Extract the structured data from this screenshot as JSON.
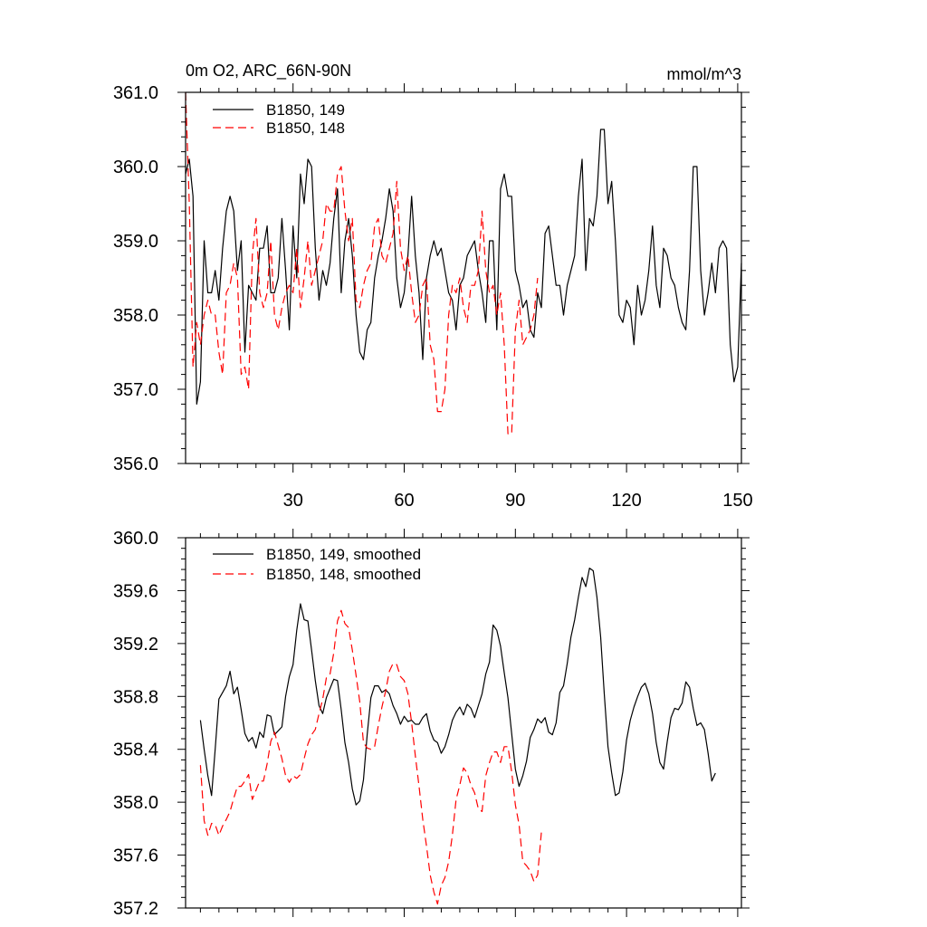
{
  "colors": {
    "series_149": "#000000",
    "series_148": "#ff0000"
  },
  "header": {
    "title": "0m O2, ARC_66N-90N",
    "units": "mmol/m^3"
  },
  "chart_data": [
    {
      "type": "line",
      "xlim": [
        1,
        151
      ],
      "ylim": [
        356.0,
        361.0
      ],
      "x_ticks": [
        30,
        60,
        90,
        120,
        150
      ],
      "x_tick_labels": [
        "30",
        "60",
        "90",
        "120",
        "150"
      ],
      "y_ticks": [
        356.0,
        357.0,
        358.0,
        359.0,
        360.0,
        361.0
      ],
      "y_tick_labels": [
        "356.0",
        "357.0",
        "358.0",
        "359.0",
        "360.0",
        "361.0"
      ],
      "legend": "top-left",
      "series": [
        {
          "name": "B1850, 149",
          "color": "#000000",
          "dash": "solid",
          "x_start": 1,
          "values": [
            359.9,
            360.1,
            359.6,
            356.8,
            357.1,
            359.0,
            358.3,
            358.3,
            358.6,
            358.2,
            358.9,
            359.4,
            359.6,
            359.4,
            358.6,
            359.0,
            357.5,
            358.4,
            358.3,
            358.2,
            358.9,
            358.9,
            359.2,
            358.3,
            358.3,
            358.5,
            359.3,
            358.6,
            357.8,
            359.2,
            358.5,
            359.9,
            359.5,
            360.1,
            360.0,
            358.9,
            358.2,
            358.6,
            358.4,
            358.7,
            359.3,
            359.7,
            358.3,
            359.0,
            359.3,
            358.8,
            358.0,
            357.5,
            357.4,
            357.8,
            357.9,
            358.5,
            358.8,
            359.0,
            359.3,
            359.7,
            359.4,
            358.5,
            358.1,
            358.3,
            358.8,
            359.6,
            358.8,
            358.3,
            357.4,
            358.5,
            358.8,
            359.0,
            358.8,
            358.9,
            358.6,
            358.3,
            358.2,
            357.8,
            358.4,
            358.5,
            358.8,
            358.9,
            359.0,
            358.6,
            358.3,
            357.9,
            359.0,
            359.0,
            357.8,
            359.7,
            359.9,
            359.6,
            359.6,
            358.6,
            358.4,
            358.1,
            358.2,
            357.8,
            357.7,
            358.3,
            358.1,
            359.1,
            359.2,
            358.8,
            358.4,
            358.4,
            358.0,
            358.4,
            358.6,
            358.8,
            359.6,
            360.1,
            358.6,
            359.3,
            359.2,
            359.6,
            360.5,
            360.5,
            359.5,
            359.8,
            359.0,
            358.0,
            357.9,
            358.2,
            358.1,
            357.6,
            358.4,
            358.0,
            358.2,
            358.6,
            359.2,
            358.4,
            358.1,
            358.9,
            358.8,
            358.5,
            358.4,
            358.1,
            357.9,
            357.8,
            358.6,
            360.0,
            360.0,
            358.6,
            358.0,
            358.3,
            358.7,
            358.3,
            358.9,
            359.0,
            358.9,
            357.6,
            357.1,
            357.3,
            358.7
          ]
        },
        {
          "name": "B1850, 148",
          "color": "#ff0000",
          "dash": "dashed",
          "x_start": 1,
          "values": [
            361.0,
            359.5,
            357.3,
            357.9,
            357.6,
            358.0,
            358.2,
            358.0,
            358.0,
            357.5,
            357.2,
            358.3,
            358.4,
            358.7,
            358.5,
            357.2,
            357.3,
            357.0,
            358.8,
            359.3,
            358.3,
            358.1,
            358.3,
            359.0,
            358.0,
            357.8,
            358.1,
            358.3,
            358.4,
            358.3,
            358.9,
            358.1,
            358.5,
            359.0,
            358.4,
            358.6,
            358.8,
            359.0,
            359.5,
            359.4,
            359.4,
            359.9,
            360.0,
            359.4,
            359.0,
            359.3,
            358.2,
            358.1,
            358.4,
            358.6,
            358.7,
            359.2,
            359.3,
            358.8,
            358.7,
            358.9,
            359.1,
            359.8,
            358.9,
            358.6,
            358.8,
            358.3,
            357.9,
            358.0,
            358.4,
            358.5,
            357.6,
            357.4,
            356.7,
            356.7,
            357.0,
            358.0,
            358.4,
            358.3,
            358.5,
            358.1,
            357.9,
            358.4,
            358.4,
            358.6,
            359.4,
            358.6,
            358.3,
            358.4,
            358.0,
            358.3,
            357.6,
            356.4,
            356.4,
            357.8,
            358.2,
            357.6,
            357.7,
            357.8,
            358.0,
            358.5
          ]
        }
      ]
    },
    {
      "type": "line",
      "xlim": [
        1,
        151
      ],
      "ylim": [
        357.2,
        360.0
      ],
      "y_ticks": [
        357.2,
        357.6,
        358.0,
        358.4,
        358.8,
        359.2,
        359.6,
        360.0
      ],
      "y_tick_labels": [
        "357.2",
        "357.6",
        "358.0",
        "358.4",
        "358.8",
        "359.2",
        "359.6",
        "360.0"
      ],
      "legend": "top-left",
      "series": [
        {
          "name": "B1850, 149, smoothed",
          "color": "#000000",
          "dash": "solid",
          "x_start": 5,
          "values": [
            358.62,
            358.4,
            358.2,
            358.05,
            358.4,
            358.78,
            358.83,
            358.88,
            358.99,
            358.82,
            358.87,
            358.7,
            358.52,
            358.46,
            358.49,
            358.41,
            358.53,
            358.49,
            358.66,
            358.65,
            358.51,
            358.54,
            358.57,
            358.8,
            358.95,
            359.04,
            359.3,
            359.5,
            359.38,
            359.37,
            359.15,
            358.92,
            358.73,
            358.67,
            358.79,
            358.86,
            358.93,
            358.92,
            358.7,
            358.45,
            358.3,
            358.1,
            357.98,
            358.01,
            358.17,
            358.51,
            358.79,
            358.88,
            358.88,
            358.83,
            358.85,
            358.82,
            358.73,
            358.67,
            358.59,
            358.65,
            358.61,
            358.62,
            358.59,
            358.59,
            358.64,
            358.67,
            358.54,
            358.47,
            358.45,
            358.37,
            358.42,
            358.51,
            358.62,
            358.68,
            358.72,
            358.66,
            358.74,
            358.71,
            358.64,
            358.73,
            358.82,
            358.97,
            359.06,
            359.34,
            359.3,
            359.18,
            358.98,
            358.79,
            358.52,
            358.25,
            358.12,
            358.2,
            358.31,
            358.49,
            358.55,
            358.63,
            358.6,
            358.64,
            358.53,
            358.51,
            358.6,
            358.83,
            358.88,
            359.05,
            359.25,
            359.38,
            359.55,
            359.7,
            359.63,
            359.77,
            359.75,
            359.55,
            359.25,
            358.82,
            358.42,
            358.22,
            358.05,
            358.07,
            358.23,
            358.47,
            358.62,
            358.72,
            358.8,
            358.87,
            358.9,
            358.82,
            358.67,
            358.45,
            358.3,
            358.25,
            358.46,
            358.64,
            358.71,
            358.7,
            358.75,
            358.91,
            358.87,
            358.71,
            358.58,
            358.6,
            358.55,
            358.37,
            358.16,
            358.22
          ]
        },
        {
          "name": "B1850, 148, smoothed",
          "color": "#ff0000",
          "dash": "dashed",
          "x_start": 5,
          "values": [
            358.28,
            357.86,
            357.75,
            357.84,
            357.83,
            357.75,
            357.82,
            357.87,
            357.93,
            358.03,
            358.12,
            358.12,
            358.16,
            358.21,
            358.02,
            358.09,
            358.16,
            358.16,
            358.29,
            358.46,
            358.53,
            358.43,
            358.33,
            358.2,
            358.15,
            358.2,
            358.18,
            358.21,
            358.33,
            358.44,
            358.51,
            358.55,
            358.67,
            358.78,
            358.94,
            358.97,
            359.13,
            359.37,
            359.45,
            359.35,
            359.32,
            359.15,
            358.96,
            358.76,
            358.45,
            358.41,
            358.4,
            358.42,
            358.58,
            358.72,
            358.84,
            358.99,
            359.05,
            359.04,
            358.95,
            358.92,
            358.82,
            358.6,
            358.35,
            358.12,
            357.87,
            357.67,
            357.45,
            357.32,
            357.23,
            357.37,
            357.43,
            357.55,
            357.75,
            358.02,
            358.13,
            358.26,
            358.22,
            358.13,
            358.07,
            357.95,
            357.93,
            358.2,
            358.3,
            358.38,
            358.38,
            358.3,
            358.42,
            358.42,
            358.23,
            357.98,
            357.83,
            357.55,
            357.52,
            357.48,
            357.4,
            357.45,
            357.77
          ]
        }
      ]
    }
  ]
}
